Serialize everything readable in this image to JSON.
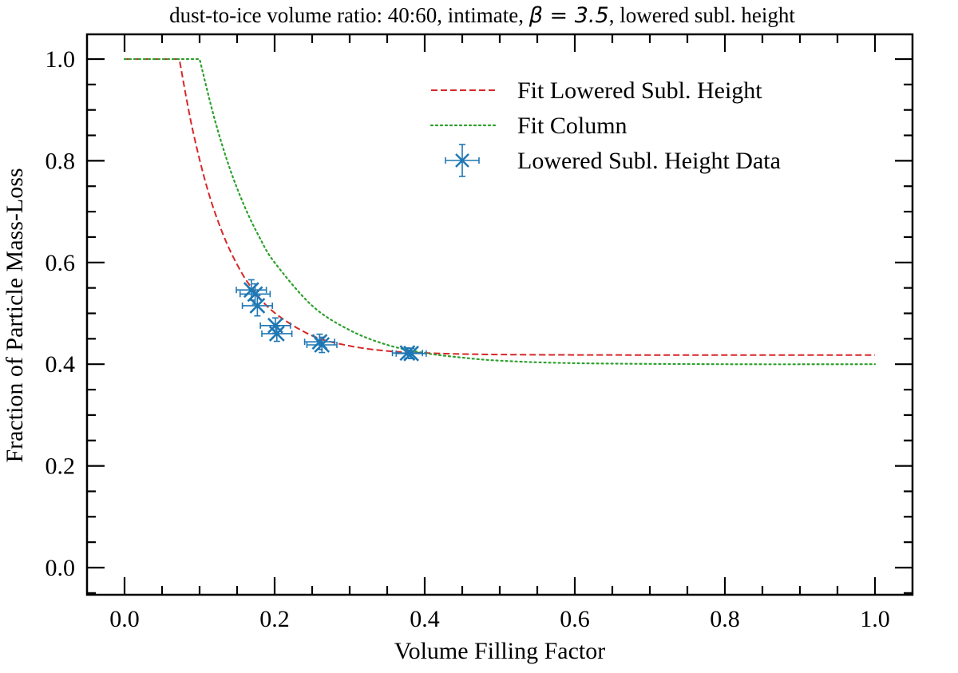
{
  "chart_data": {
    "type": "line",
    "title": "dust-to-ice volume ratio: 40:60, intimate, ",
    "title_math": "β = 3.5",
    "title_suffix": ", lowered subl. height",
    "xlabel": "Volume Filling Factor",
    "ylabel": "Fraction of Particle Mass-Loss",
    "xlim": [
      -0.05,
      1.05
    ],
    "ylim": [
      -0.05,
      1.05
    ],
    "xticks": [
      "0.0",
      "0.2",
      "0.4",
      "0.6",
      "0.8",
      "1.0"
    ],
    "yticks": [
      "0.0",
      "0.2",
      "0.4",
      "0.6",
      "0.8",
      "1.0"
    ],
    "grid": false,
    "legend_position": "top-right",
    "series": [
      {
        "name": "Fit Lowered Subl. Height",
        "style": "dashed",
        "color": "#d62728",
        "x": [
          0,
          0.073,
          0.09,
          0.11,
          0.13,
          0.15,
          0.17,
          0.2,
          0.25,
          0.3,
          0.35,
          0.4,
          0.5,
          0.7,
          1.0
        ],
        "y": [
          1.0,
          1.0,
          0.866,
          0.747,
          0.66,
          0.596,
          0.549,
          0.501,
          0.456,
          0.436,
          0.426,
          0.422,
          0.419,
          0.418,
          0.418
        ]
      },
      {
        "name": "Fit Column",
        "style": "dotted",
        "color": "#2ca02c",
        "x": [
          0,
          0.1,
          0.12,
          0.14,
          0.16,
          0.18,
          0.2,
          0.25,
          0.3,
          0.35,
          0.4,
          0.45,
          0.5,
          0.6,
          0.8,
          1.0
        ],
        "y": [
          1.0,
          1.0,
          0.882,
          0.786,
          0.71,
          0.649,
          0.6,
          0.515,
          0.467,
          0.438,
          0.422,
          0.413,
          0.407,
          0.402,
          0.4,
          0.4
        ]
      },
      {
        "name": "Lowered Subl. Height Data",
        "style": "errorbar-x",
        "color": "#1f77b4",
        "x": [
          0.169,
          0.174,
          0.177,
          0.201,
          0.203,
          0.26,
          0.263,
          0.377,
          0.382
        ],
        "y": [
          0.546,
          0.538,
          0.515,
          0.476,
          0.46,
          0.444,
          0.438,
          0.422,
          0.421
        ],
        "xerr": [
          0.02,
          0.02,
          0.02,
          0.02,
          0.02,
          0.02,
          0.02,
          0.02,
          0.02
        ],
        "yerr": [
          0.02,
          0.02,
          0.02,
          0.015,
          0.015,
          0.015,
          0.015,
          0.01,
          0.01
        ]
      }
    ]
  }
}
